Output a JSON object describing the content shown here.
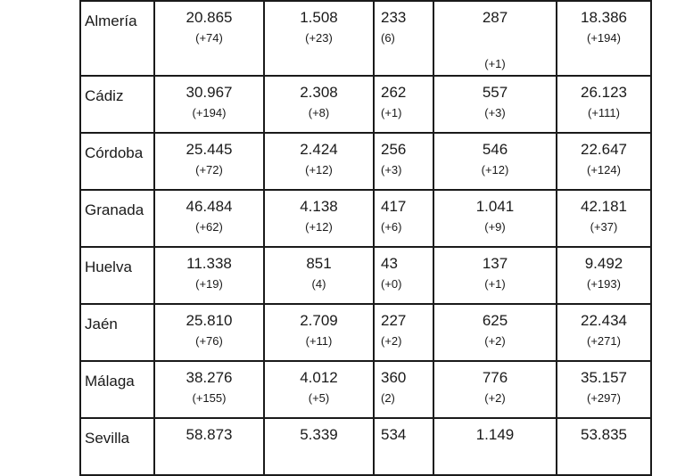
{
  "rows": [
    {
      "name": "Almería",
      "cells": [
        {
          "v": "20.865",
          "d": "(+74)"
        },
        {
          "v": "1.508",
          "d": "(+23)"
        },
        {
          "v": "233",
          "d": "(6)"
        },
        {
          "v": "287",
          "d": "(+1)"
        },
        {
          "v": "18.386",
          "d": "(+194)"
        }
      ]
    },
    {
      "name": "Cádiz",
      "cells": [
        {
          "v": "30.967",
          "d": "(+194)"
        },
        {
          "v": "2.308",
          "d": "(+8)"
        },
        {
          "v": "262",
          "d": "(+1)"
        },
        {
          "v": "557",
          "d": "(+3)"
        },
        {
          "v": "26.123",
          "d": "(+111)"
        }
      ]
    },
    {
      "name": "Córdoba",
      "cells": [
        {
          "v": "25.445",
          "d": "(+72)"
        },
        {
          "v": "2.424",
          "d": "(+12)"
        },
        {
          "v": "256",
          "d": "(+3)"
        },
        {
          "v": "546",
          "d": "(+12)"
        },
        {
          "v": "22.647",
          "d": "(+124)"
        }
      ]
    },
    {
      "name": "Granada",
      "cells": [
        {
          "v": "46.484",
          "d": "(+62)"
        },
        {
          "v": "4.138",
          "d": "(+12)"
        },
        {
          "v": "417",
          "d": "(+6)"
        },
        {
          "v": "1.041",
          "d": "(+9)"
        },
        {
          "v": "42.181",
          "d": "(+37)"
        }
      ]
    },
    {
      "name": "Huelva",
      "cells": [
        {
          "v": "11.338",
          "d": "(+19)"
        },
        {
          "v": "851",
          "d": "(4)"
        },
        {
          "v": "43",
          "d": "(+0)"
        },
        {
          "v": "137",
          "d": "(+1)"
        },
        {
          "v": "9.492",
          "d": "(+193)"
        }
      ]
    },
    {
      "name": "Jaén",
      "cells": [
        {
          "v": "25.810",
          "d": "(+76)"
        },
        {
          "v": "2.709",
          "d": "(+11)"
        },
        {
          "v": "227",
          "d": "(+2)"
        },
        {
          "v": "625",
          "d": "(+2)"
        },
        {
          "v": "22.434",
          "d": "(+271)"
        }
      ]
    },
    {
      "name": "Málaga",
      "cells": [
        {
          "v": "38.276",
          "d": "(+155)"
        },
        {
          "v": "4.012",
          "d": "(+5)"
        },
        {
          "v": "360",
          "d": "(2)"
        },
        {
          "v": "776",
          "d": "(+2)"
        },
        {
          "v": "35.157",
          "d": "(+297)"
        }
      ]
    },
    {
      "name": "Sevilla",
      "cells": [
        {
          "v": "58.873",
          "d": ""
        },
        {
          "v": "5.339",
          "d": ""
        },
        {
          "v": "534",
          "d": ""
        },
        {
          "v": "1.149",
          "d": ""
        },
        {
          "v": "53.835",
          "d": ""
        }
      ]
    }
  ]
}
